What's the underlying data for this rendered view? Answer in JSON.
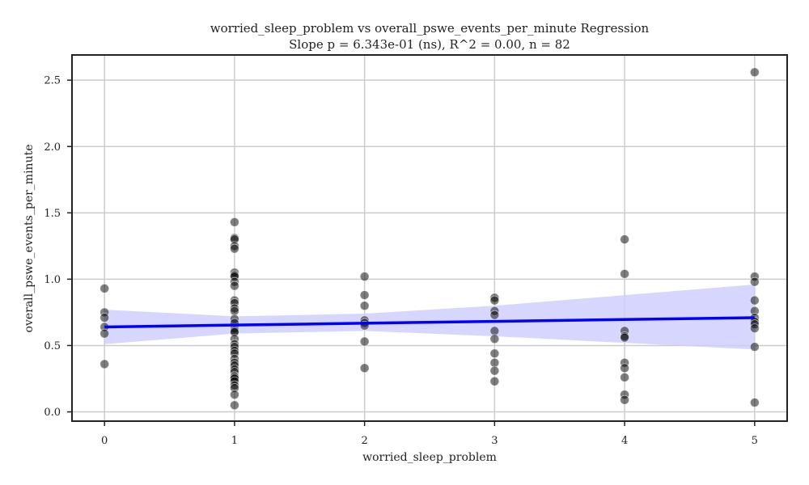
{
  "chart_data": {
    "type": "scatter",
    "title": "worried_sleep_problem vs overall_pswe_events_per_minute Regression",
    "subtitle": "Slope p = 6.343e-01 (ns), R^2 = 0.00, n = 82",
    "xlabel": "worried_sleep_problem",
    "ylabel": "overall_pswe_events_per_minute",
    "xlim": [
      -0.25,
      5.25
    ],
    "ylim": [
      -0.07,
      2.69
    ],
    "xticks": [
      0,
      1,
      2,
      3,
      4,
      5
    ],
    "yticks": [
      0.0,
      0.5,
      1.0,
      1.5,
      2.0,
      2.5
    ],
    "x_tick_labels": [
      "0",
      "1",
      "2",
      "3",
      "4",
      "5"
    ],
    "y_tick_labels": [
      "0.0",
      "0.5",
      "1.0",
      "1.5",
      "2.0",
      "2.5"
    ],
    "grid": true,
    "points": {
      "x": [
        0,
        0,
        0,
        0,
        0,
        0,
        1,
        1,
        1,
        1,
        1,
        1,
        1,
        1,
        1,
        1,
        1,
        1,
        1,
        1,
        1,
        1,
        1,
        1,
        1,
        1,
        1,
        1,
        1,
        1,
        1,
        1,
        1,
        1,
        1,
        1,
        1,
        1,
        1,
        1,
        1,
        1,
        1,
        2,
        2,
        2,
        2,
        2,
        2,
        2,
        2,
        3,
        3,
        3,
        3,
        3,
        3,
        3,
        3,
        3,
        3,
        4,
        4,
        4,
        4,
        4,
        4,
        4,
        4,
        4,
        4,
        5,
        5,
        5,
        5,
        5,
        5,
        5,
        5,
        5,
        5,
        5
      ],
      "y": [
        0.93,
        0.75,
        0.71,
        0.64,
        0.59,
        0.36,
        1.43,
        1.31,
        1.3,
        1.25,
        1.23,
        1.05,
        1.03,
        1.02,
        0.98,
        0.95,
        0.84,
        0.82,
        0.78,
        0.76,
        0.7,
        0.67,
        0.63,
        0.61,
        0.6,
        0.55,
        0.51,
        0.49,
        0.46,
        0.44,
        0.4,
        0.37,
        0.35,
        0.32,
        0.3,
        0.27,
        0.26,
        0.25,
        0.23,
        0.2,
        0.18,
        0.13,
        0.05,
        1.02,
        0.88,
        0.8,
        0.69,
        0.67,
        0.65,
        0.53,
        0.33,
        0.86,
        0.84,
        0.76,
        0.73,
        0.61,
        0.55,
        0.44,
        0.37,
        0.31,
        0.23,
        1.3,
        1.04,
        0.61,
        0.57,
        0.56,
        0.37,
        0.33,
        0.26,
        0.13,
        0.09,
        2.56,
        1.02,
        0.98,
        0.84,
        0.76,
        0.71,
        0.68,
        0.66,
        0.63,
        0.49,
        0.07
      ],
      "color": "#000000",
      "opacity": 0.5
    },
    "regression": {
      "x": [
        0,
        5
      ],
      "y": [
        0.64,
        0.71
      ],
      "color": "#0000ff"
    },
    "confidence_band": {
      "x": [
        0,
        1,
        2,
        3,
        4,
        5
      ],
      "upper": [
        0.77,
        0.72,
        0.74,
        0.8,
        0.88,
        0.96
      ],
      "lower": [
        0.51,
        0.59,
        0.61,
        0.57,
        0.52,
        0.47
      ],
      "color": "#ccccff"
    }
  }
}
